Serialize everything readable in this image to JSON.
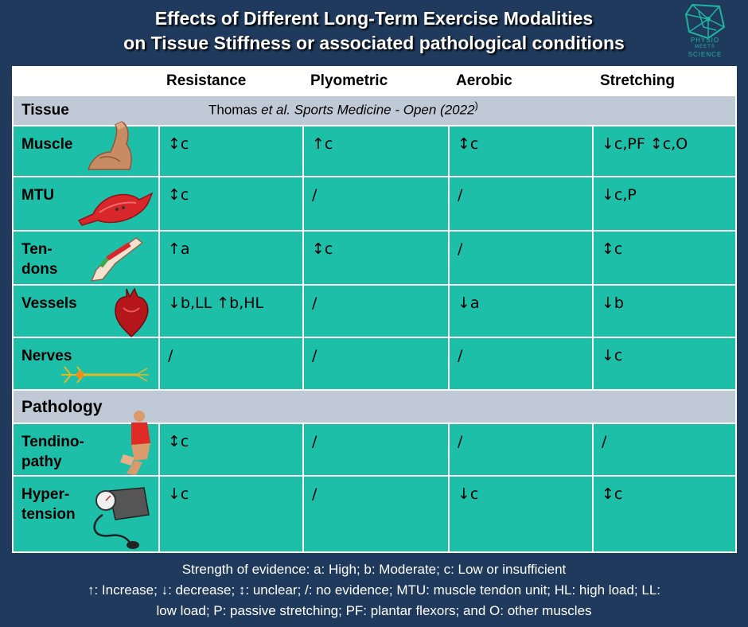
{
  "title": {
    "line1": "Effects of Different Long-Term Exercise Modalities",
    "line2": "on Tissue Stiffness or associated pathological conditions"
  },
  "logo": {
    "text_line1": "PHYSIO",
    "text_line2": "MEETS",
    "text_line3": "SCIENCE",
    "color": "#1fb5a0"
  },
  "columns": [
    "Resistance",
    "Plyometric",
    "Aerobic",
    "Stretching"
  ],
  "sections": {
    "tissue": "Tissue",
    "pathology": "Pathology"
  },
  "citation": {
    "authors": "Thomas",
    "rest": "et al. Sports Medicine - Open (2022",
    "close": ")"
  },
  "rows": {
    "muscle": {
      "label": "Muscle",
      "values": [
        "↕c",
        "↑c",
        "↕c",
        "↓c,PF ↕c,O"
      ],
      "icon": "flexed-arm-icon"
    },
    "mtu": {
      "label": "MTU",
      "values": [
        "↕c",
        "/",
        "/",
        "↓c,P"
      ],
      "icon": "muscle-icon"
    },
    "tendons": {
      "label_line1": "Ten-",
      "label_line2": "dons",
      "values": [
        "↑a",
        "↕c",
        "/",
        "↕c"
      ],
      "icon": "leg-tendon-icon"
    },
    "vessels": {
      "label": "Vessels",
      "values": [
        "↓b,LL ↑b,HL",
        "/",
        "↓a",
        "↓b"
      ],
      "icon": "heart-icon"
    },
    "nerves": {
      "label": "Nerves",
      "values": [
        "/",
        "/",
        "/",
        "↓c"
      ],
      "icon": "neuron-icon"
    },
    "tendinopathy": {
      "label_line1": "Tendino-",
      "label_line2": "pathy",
      "values": [
        "↕c",
        "/",
        "/",
        "/"
      ],
      "icon": "knee-pain-icon"
    },
    "hypertension": {
      "label_line1": "Hyper-",
      "label_line2": "tension",
      "values": [
        "↓c",
        "/",
        "↓c",
        "↕c"
      ],
      "icon": "blood-pressure-cuff-icon"
    }
  },
  "footer": {
    "line1": "Strength of evidence: a: High; b: Moderate; c: Low or insufficient",
    "line2": "↑: Increase; ↓: decrease; ↕: unclear; /: no evidence; MTU: muscle tendon unit; HL: high load; LL:",
    "line3": "low load; P: passive stretching; PF: plantar flexors; and O: other muscles"
  },
  "colors": {
    "background": "#1f3a5c",
    "row": "#1dbfa9",
    "section": "#c0cad6",
    "header": "#ffffff"
  }
}
